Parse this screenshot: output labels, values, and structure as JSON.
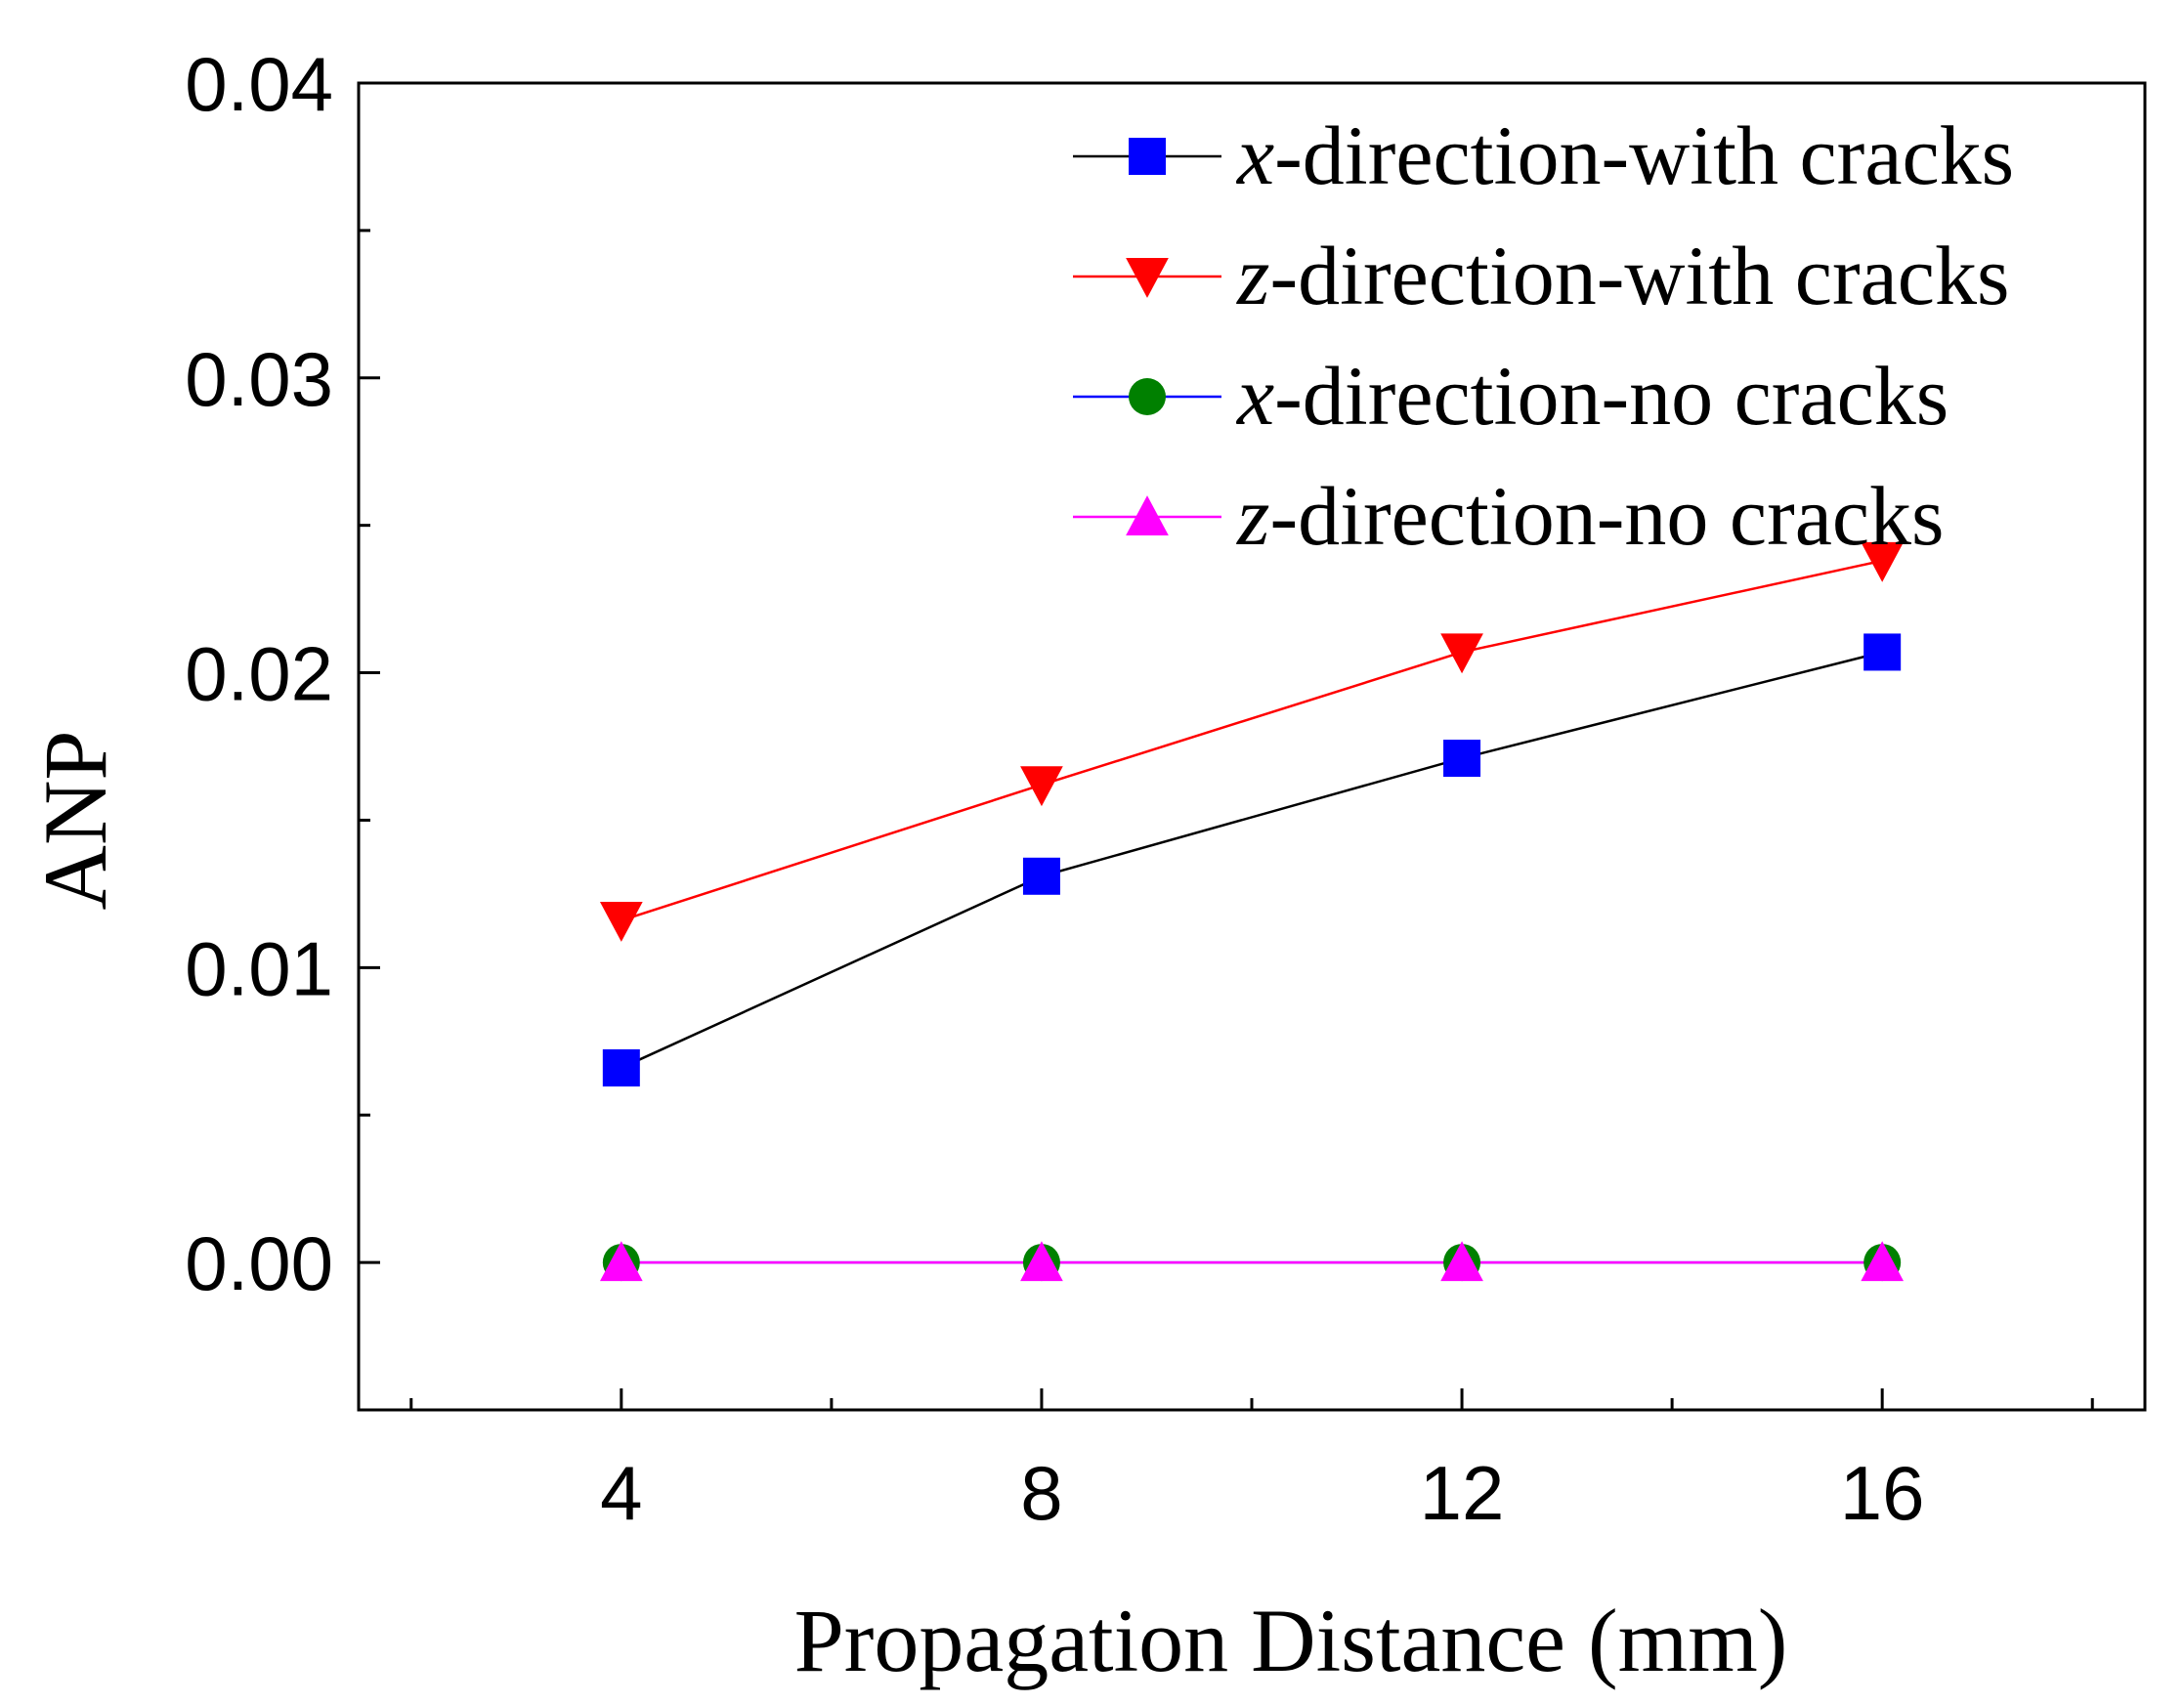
{
  "chart_data": {
    "type": "line",
    "title": "",
    "xlabel": "Propagation Distance (mm)",
    "ylabel": "ANP",
    "xlim": [
      1.5,
      18.5
    ],
    "ylim": [
      -0.005,
      0.04
    ],
    "xticks": [
      4,
      8,
      12,
      16
    ],
    "xtick_labels": [
      "4",
      "8",
      "12",
      "16"
    ],
    "yticks": [
      0.0,
      0.01,
      0.02,
      0.03,
      0.04
    ],
    "ytick_labels": [
      "0.00",
      "0.01",
      "0.02",
      "0.03",
      "0.04"
    ],
    "grid": false,
    "legend_position": "top-right",
    "x": [
      4,
      8,
      12,
      16
    ],
    "series": [
      {
        "name": "x-direction-with cracks",
        "var": "x",
        "rest": "-direction-with cracks",
        "color": "#000000",
        "marker_color": "#0000ff",
        "marker": "square",
        "values": [
          0.0066,
          0.0131,
          0.0171,
          0.0207
        ]
      },
      {
        "name": "z-direction-with cracks",
        "var": "z",
        "rest": "-direction-with cracks",
        "color": "#ff0000",
        "marker_color": "#ff0000",
        "marker": "triangle-down",
        "values": [
          0.0116,
          0.0162,
          0.0207,
          0.0238
        ]
      },
      {
        "name": "x-direction-no cracks",
        "var": "x",
        "rest": "-direction-no cracks",
        "color": "#0000ff",
        "marker_color": "#008000",
        "marker": "circle",
        "values": [
          0.0,
          0.0,
          0.0,
          0.0
        ]
      },
      {
        "name": "z-direction-no cracks",
        "var": "z",
        "rest": "-direction-no cracks",
        "color": "#ff00ff",
        "marker_color": "#ff00ff",
        "marker": "triangle-up",
        "values": [
          0.0,
          0.0,
          0.0,
          0.0
        ]
      }
    ]
  }
}
